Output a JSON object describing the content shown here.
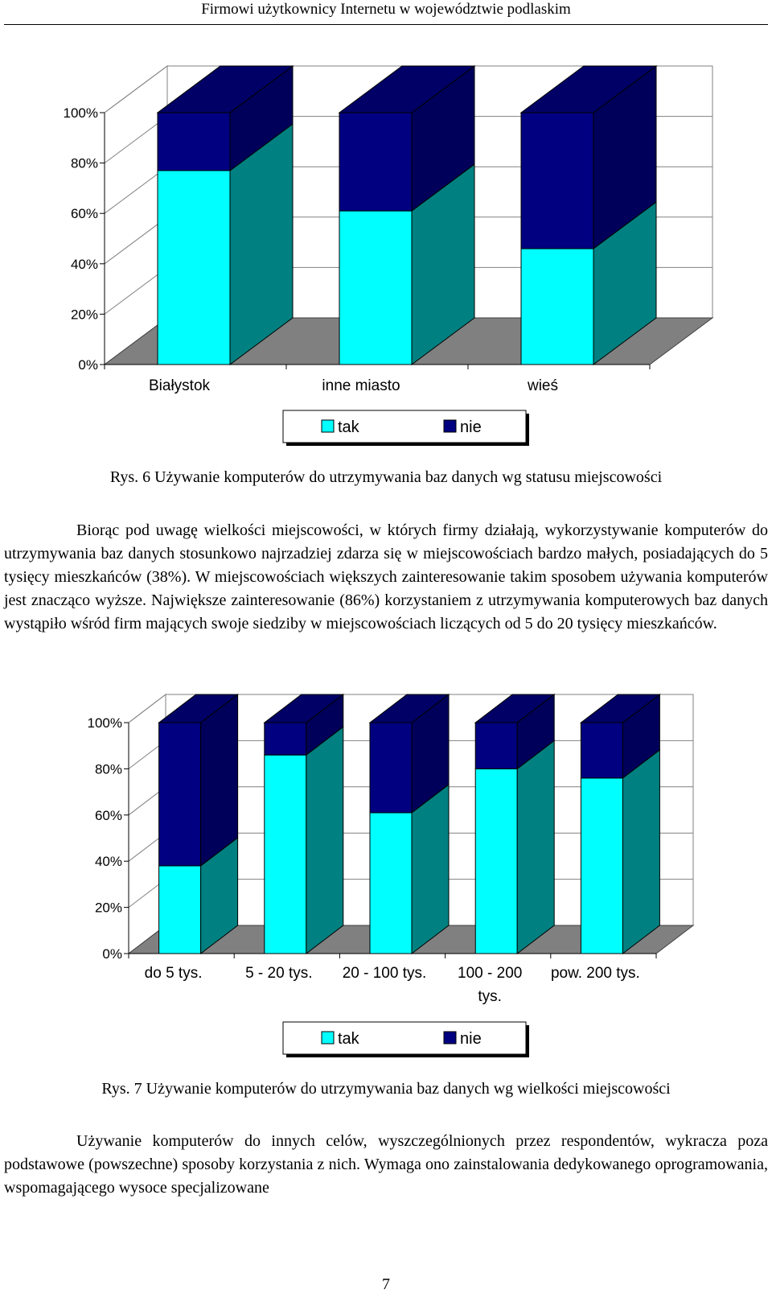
{
  "running_header": "Firmowi użytkownicy Internetu w województwie podlaskim",
  "figure6": {
    "caption": "Rys. 6 Używanie komputerów do utrzymywania baz danych wg statusu miejscowości"
  },
  "paragraph1": "Biorąc pod uwagę wielkości miejscowości, w których firmy działają, wykorzystywanie komputerów do utrzymywania baz danych stosunkowo najrzadziej zdarza się w miejscowościach bardzo małych, posiadających do 5 tysięcy mieszkańców (38%). W miejscowościach większych zainteresowanie takim sposobem używania komputerów jest znacząco wyższe. Największe zainteresowanie (86%) korzystaniem z utrzymywania komputerowych baz danych wystąpiło wśród firm mających swoje siedziby w miejscowościach liczących od 5 do 20 tysięcy mieszkańców.",
  "figure7": {
    "caption": "Rys. 7 Używanie komputerów do utrzymywania baz danych wg wielkości miejscowości"
  },
  "paragraph2": "Używanie komputerów do innych celów, wyszczególnionych przez respondentów, wykracza poza podstawowe (powszechne) sposoby korzystania z nich. Wymaga ono zainstalowania dedykowanego oprogramowania, wspomagającego wysoce specjalizowane",
  "page_number": "7",
  "colors": {
    "tak_front": "#00ffff",
    "tak_side": "#008080",
    "nie_front": "#000080",
    "nie_side": "#00005a",
    "nie_top": "#000066",
    "floor": "#808080"
  },
  "chart_data": [
    {
      "type": "bar",
      "stacked": true,
      "percent": true,
      "three_d": true,
      "categories": [
        "Białystok",
        "inne miasto",
        "wieś"
      ],
      "series": [
        {
          "name": "tak",
          "values": [
            77,
            61,
            46
          ]
        },
        {
          "name": "nie",
          "values": [
            23,
            39,
            54
          ]
        }
      ],
      "y_ticks": [
        "0%",
        "20%",
        "40%",
        "60%",
        "80%",
        "100%"
      ],
      "ylim": [
        0,
        100
      ],
      "legend": [
        "tak",
        "nie"
      ],
      "legend_position": "bottom"
    },
    {
      "type": "bar",
      "stacked": true,
      "percent": true,
      "three_d": true,
      "categories": [
        "do 5 tys.",
        "5 - 20 tys.",
        "20 - 100 tys.",
        "100 - 200 tys.",
        "pow. 200 tys."
      ],
      "series": [
        {
          "name": "tak",
          "values": [
            38,
            86,
            61,
            80,
            76
          ]
        },
        {
          "name": "nie",
          "values": [
            62,
            14,
            39,
            20,
            24
          ]
        }
      ],
      "y_ticks": [
        "0%",
        "20%",
        "40%",
        "60%",
        "80%",
        "100%"
      ],
      "ylim": [
        0,
        100
      ],
      "legend": [
        "tak",
        "nie"
      ],
      "legend_position": "bottom"
    }
  ]
}
